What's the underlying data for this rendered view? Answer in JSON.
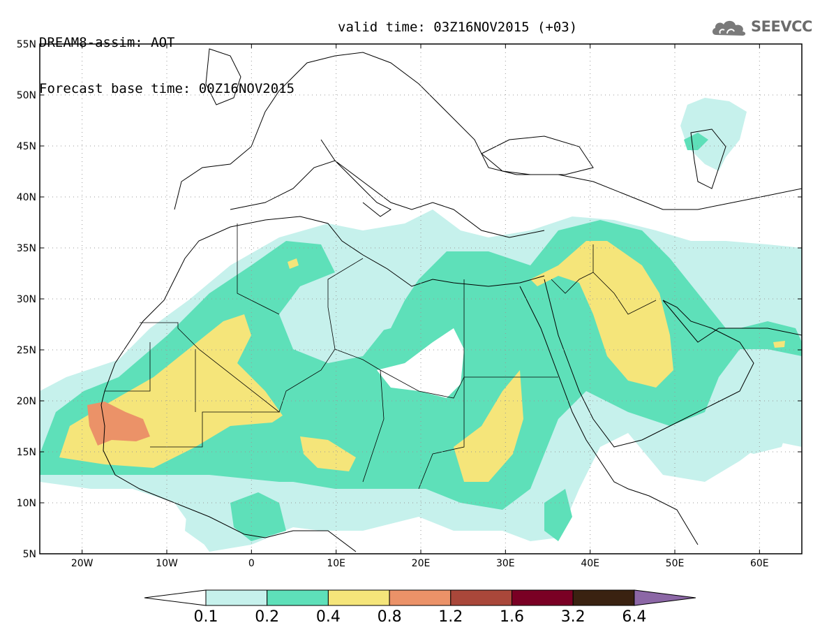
{
  "header": {
    "title": "DREAM8-assim: AOT",
    "base_time": "Forecast base time: 00Z16NOV2015",
    "valid_time": "valid time: 03Z16NOV2015 (+03)"
  },
  "logo": {
    "text": "SEEVCCC",
    "icon": "cloud-icon"
  },
  "map": {
    "lon_range": [
      -25,
      65
    ],
    "lat_range": [
      5,
      55
    ],
    "lon_ticks": [
      {
        "value": -20,
        "label": "20W"
      },
      {
        "value": -10,
        "label": "10W"
      },
      {
        "value": 0,
        "label": "0"
      },
      {
        "value": 10,
        "label": "10E"
      },
      {
        "value": 20,
        "label": "20E"
      },
      {
        "value": 30,
        "label": "30E"
      },
      {
        "value": 40,
        "label": "40E"
      },
      {
        "value": 50,
        "label": "50E"
      },
      {
        "value": 60,
        "label": "60E"
      }
    ],
    "lat_ticks": [
      {
        "value": 55,
        "label": "55N"
      },
      {
        "value": 50,
        "label": "50N"
      },
      {
        "value": 45,
        "label": "45N"
      },
      {
        "value": 40,
        "label": "40N"
      },
      {
        "value": 35,
        "label": "35N"
      },
      {
        "value": 30,
        "label": "30N"
      },
      {
        "value": 25,
        "label": "25N"
      },
      {
        "value": 20,
        "label": "20N"
      },
      {
        "value": 15,
        "label": "15N"
      },
      {
        "value": 10,
        "label": "10N"
      },
      {
        "value": 5,
        "label": "5N"
      }
    ],
    "grid": "dotted"
  },
  "colorbar": {
    "colors": [
      "#ffffff",
      "#c6f1ec",
      "#5ee0b9",
      "#f5e57a",
      "#eb9268",
      "#a9473a",
      "#7a0024",
      "#3a2211",
      "#8c67a6"
    ],
    "labels": [
      "0.1",
      "0.2",
      "0.4",
      "0.8",
      "1.2",
      "1.6",
      "3.2",
      "6.4"
    ]
  }
}
